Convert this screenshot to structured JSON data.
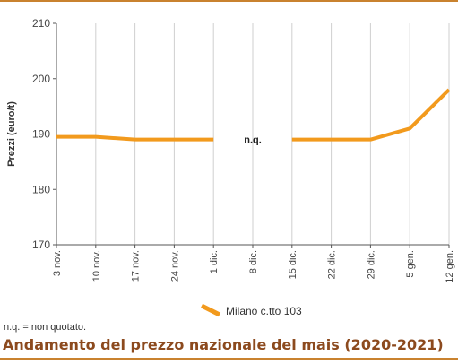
{
  "chart_data": {
    "type": "line",
    "ylabel": "Prezzi (euro/t)",
    "ylim": [
      170,
      210
    ],
    "yticks": [
      170,
      180,
      190,
      200,
      210
    ],
    "categories": [
      "3 nov.",
      "10 nov.",
      "17 nov.",
      "24 nov.",
      "1 dic.",
      "8 dic.",
      "15 dic.",
      "22 dic.",
      "29 dic.",
      "5 gen.",
      "12 gen."
    ],
    "series": [
      {
        "name": "Milano  c.tto 103",
        "color": "#f29a1d",
        "values": [
          189.5,
          189.5,
          189,
          189,
          189,
          null,
          189,
          189,
          189,
          191,
          198
        ]
      }
    ],
    "annotations": [
      {
        "text": "n.q.",
        "category": "8 dic.",
        "y": 189
      }
    ],
    "grid": "vertical"
  },
  "note": "n.q. = non quotato.",
  "footer_title": "Andamento del prezzo nazionale del mais (2020-2021)"
}
